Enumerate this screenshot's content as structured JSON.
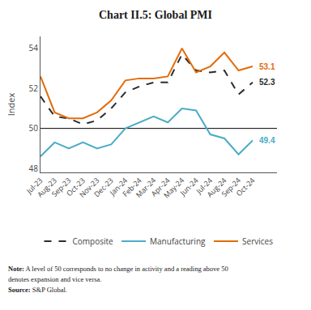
{
  "chart_data": {
    "type": "line",
    "title": "Chart II.5: Global PMI",
    "ylabel": "Index",
    "categories": [
      "Jul-23",
      "Aug-23",
      "Sep-23",
      "Oct-23",
      "Nov-23",
      "Dec-23",
      "Jan-24",
      "Feb-24",
      "Mar-24",
      "Apr-24",
      "May-24",
      "Jun-24",
      "Jul-24",
      "Aug-24",
      "Sep-24",
      "Oct-24"
    ],
    "series": [
      {
        "name": "Composite",
        "color": "#2c2c2c",
        "line_style": "dashed",
        "values": [
          51.6,
          50.6,
          50.5,
          50.2,
          50.4,
          51.0,
          51.8,
          52.1,
          52.3,
          52.3,
          53.7,
          52.9,
          52.8,
          52.9,
          51.7,
          52.3
        ]
      },
      {
        "name": "Manufacturing",
        "color": "#4bacc6",
        "line_style": "solid",
        "values": [
          48.6,
          49.3,
          49.0,
          49.3,
          49.0,
          49.2,
          50.0,
          50.3,
          50.6,
          50.3,
          51.0,
          50.9,
          49.7,
          49.5,
          48.7,
          49.4
        ]
      },
      {
        "name": "Services",
        "color": "#e36c09",
        "line_style": "solid",
        "values": [
          52.6,
          50.8,
          50.5,
          50.5,
          50.8,
          51.4,
          52.4,
          52.5,
          52.5,
          52.6,
          54.0,
          52.8,
          53.1,
          53.8,
          52.9,
          53.1
        ]
      }
    ],
    "annotations": [
      {
        "text": "53.1",
        "x": "Oct-24",
        "y": 53.1,
        "color": "#e36c09"
      },
      {
        "text": "52.3",
        "x": "Oct-24",
        "y": 52.3,
        "color": "#2c2c2c"
      },
      {
        "text": "49.4",
        "x": "Oct-24",
        "y": 49.4,
        "color": "#4bacc6"
      }
    ],
    "notes": [
      "Note: A level of 50 corresponds to no change in activity and a reading above 50",
      "denotes expansion and vice versa.",
      "Source: S&P Global."
    ],
    "hline": 50,
    "ylim": [
      47.8,
      54.6
    ],
    "yticks": [
      48,
      50,
      52,
      54
    ],
    "grid": false,
    "legend": "bottom"
  }
}
